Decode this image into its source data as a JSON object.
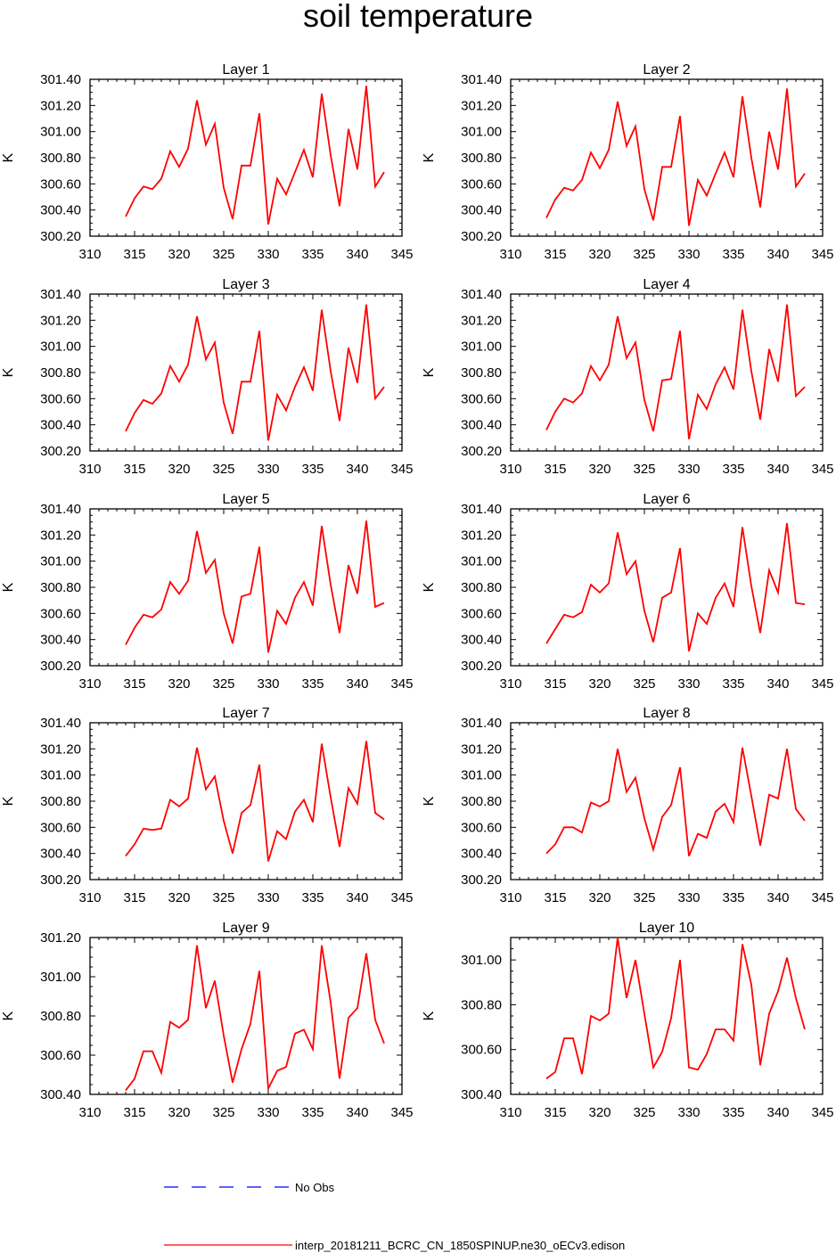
{
  "title": "soil temperature",
  "legend": [
    {
      "label": "No Obs",
      "color": "#0000ff",
      "style": "dashed"
    },
    {
      "label": "interp_20181211_BCRC_CN_1850SPINUP.ne30_oECv3.edison",
      "color": "#ff0000",
      "style": "solid"
    }
  ],
  "chart_data": [
    {
      "type": "line",
      "title": "Layer 1",
      "ylabel": "K",
      "xlim": [
        310,
        345
      ],
      "ylim": [
        300.2,
        301.4
      ],
      "xticks": [
        "310",
        "315",
        "320",
        "325",
        "330",
        "335",
        "340",
        "345"
      ],
      "yticks": [
        "300.20",
        "300.40",
        "300.60",
        "300.80",
        "301.00",
        "301.20",
        "301.40"
      ],
      "x": [
        314,
        315,
        316,
        317,
        318,
        319,
        320,
        321,
        322,
        323,
        324,
        325,
        326,
        327,
        328,
        329,
        330,
        331,
        332,
        333,
        334,
        335,
        336,
        337,
        338,
        339,
        340,
        341,
        342,
        343
      ],
      "series": [
        {
          "values": [
            300.35,
            300.49,
            300.58,
            300.56,
            300.64,
            300.85,
            300.73,
            300.87,
            301.24,
            300.9,
            301.06,
            300.57,
            300.33,
            300.74,
            300.74,
            301.14,
            300.29,
            300.64,
            300.52,
            300.69,
            300.86,
            300.65,
            301.29,
            300.82,
            300.43,
            301.02,
            300.71,
            301.35,
            300.58,
            300.69
          ]
        }
      ]
    },
    {
      "type": "line",
      "title": "Layer 2",
      "ylabel": "K",
      "xlim": [
        310,
        345
      ],
      "ylim": [
        300.2,
        301.4
      ],
      "xticks": [
        "310",
        "315",
        "320",
        "325",
        "330",
        "335",
        "340",
        "345"
      ],
      "yticks": [
        "300.20",
        "300.40",
        "300.60",
        "300.80",
        "301.00",
        "301.20",
        "301.40"
      ],
      "x": [
        314,
        315,
        316,
        317,
        318,
        319,
        320,
        321,
        322,
        323,
        324,
        325,
        326,
        327,
        328,
        329,
        330,
        331,
        332,
        333,
        334,
        335,
        336,
        337,
        338,
        339,
        340,
        341,
        342,
        343
      ],
      "series": [
        {
          "values": [
            300.34,
            300.48,
            300.57,
            300.55,
            300.63,
            300.84,
            300.72,
            300.86,
            301.23,
            300.89,
            301.04,
            300.56,
            300.32,
            300.73,
            300.73,
            301.12,
            300.28,
            300.63,
            300.51,
            300.68,
            300.84,
            300.65,
            301.27,
            300.8,
            300.42,
            301.0,
            300.71,
            301.33,
            300.58,
            300.68
          ]
        }
      ]
    },
    {
      "type": "line",
      "title": "Layer 3",
      "ylabel": "K",
      "xlim": [
        310,
        345
      ],
      "ylim": [
        300.2,
        301.4
      ],
      "xticks": [
        "310",
        "315",
        "320",
        "325",
        "330",
        "335",
        "340",
        "345"
      ],
      "yticks": [
        "300.20",
        "300.40",
        "300.60",
        "300.80",
        "301.00",
        "301.20",
        "301.40"
      ],
      "x": [
        314,
        315,
        316,
        317,
        318,
        319,
        320,
        321,
        322,
        323,
        324,
        325,
        326,
        327,
        328,
        329,
        330,
        331,
        332,
        333,
        334,
        335,
        336,
        337,
        338,
        339,
        340,
        341,
        342,
        343
      ],
      "series": [
        {
          "values": [
            300.35,
            300.49,
            300.59,
            300.56,
            300.64,
            300.85,
            300.73,
            300.86,
            301.23,
            300.9,
            301.03,
            300.57,
            300.33,
            300.73,
            300.73,
            301.12,
            300.28,
            300.63,
            300.51,
            300.69,
            300.84,
            300.66,
            301.28,
            300.81,
            300.43,
            300.99,
            300.72,
            301.32,
            300.6,
            300.69
          ]
        }
      ]
    },
    {
      "type": "line",
      "title": "Layer 4",
      "ylabel": "K",
      "xlim": [
        310,
        345
      ],
      "ylim": [
        300.2,
        301.4
      ],
      "xticks": [
        "310",
        "315",
        "320",
        "325",
        "330",
        "335",
        "340",
        "345"
      ],
      "yticks": [
        "300.20",
        "300.40",
        "300.60",
        "300.80",
        "301.00",
        "301.20",
        "301.40"
      ],
      "x": [
        314,
        315,
        316,
        317,
        318,
        319,
        320,
        321,
        322,
        323,
        324,
        325,
        326,
        327,
        328,
        329,
        330,
        331,
        332,
        333,
        334,
        335,
        336,
        337,
        338,
        339,
        340,
        341,
        342,
        343
      ],
      "series": [
        {
          "values": [
            300.36,
            300.5,
            300.6,
            300.57,
            300.64,
            300.85,
            300.74,
            300.86,
            301.23,
            300.91,
            301.03,
            300.59,
            300.35,
            300.74,
            300.75,
            301.12,
            300.29,
            300.63,
            300.52,
            300.71,
            300.84,
            300.67,
            301.28,
            300.81,
            300.44,
            300.98,
            300.73,
            301.32,
            300.62,
            300.69
          ]
        }
      ]
    },
    {
      "type": "line",
      "title": "Layer 5",
      "ylabel": "K",
      "xlim": [
        310,
        345
      ],
      "ylim": [
        300.2,
        301.4
      ],
      "xticks": [
        "310",
        "315",
        "320",
        "325",
        "330",
        "335",
        "340",
        "345"
      ],
      "yticks": [
        "300.20",
        "300.40",
        "300.60",
        "300.80",
        "301.00",
        "301.20",
        "301.40"
      ],
      "x": [
        314,
        315,
        316,
        317,
        318,
        319,
        320,
        321,
        322,
        323,
        324,
        325,
        326,
        327,
        328,
        329,
        330,
        331,
        332,
        333,
        334,
        335,
        336,
        337,
        338,
        339,
        340,
        341,
        342,
        343
      ],
      "series": [
        {
          "values": [
            300.36,
            300.49,
            300.59,
            300.57,
            300.63,
            300.84,
            300.75,
            300.85,
            301.23,
            300.91,
            301.01,
            300.6,
            300.37,
            300.73,
            300.75,
            301.11,
            300.3,
            300.62,
            300.52,
            300.72,
            300.84,
            300.66,
            301.27,
            300.82,
            300.45,
            300.97,
            300.75,
            301.31,
            300.65,
            300.68
          ]
        }
      ]
    },
    {
      "type": "line",
      "title": "Layer 6",
      "ylabel": "K",
      "xlim": [
        310,
        345
      ],
      "ylim": [
        300.2,
        301.4
      ],
      "xticks": [
        "310",
        "315",
        "320",
        "325",
        "330",
        "335",
        "340",
        "345"
      ],
      "yticks": [
        "300.20",
        "300.40",
        "300.60",
        "300.80",
        "301.00",
        "301.20",
        "301.40"
      ],
      "x": [
        314,
        315,
        316,
        317,
        318,
        319,
        320,
        321,
        322,
        323,
        324,
        325,
        326,
        327,
        328,
        329,
        330,
        331,
        332,
        333,
        334,
        335,
        336,
        337,
        338,
        339,
        340,
        341,
        342,
        343
      ],
      "series": [
        {
          "values": [
            300.37,
            300.48,
            300.59,
            300.57,
            300.61,
            300.82,
            300.76,
            300.83,
            301.22,
            300.9,
            301.0,
            300.62,
            300.38,
            300.72,
            300.76,
            301.1,
            300.31,
            300.6,
            300.52,
            300.72,
            300.83,
            300.65,
            301.26,
            300.81,
            300.45,
            300.93,
            300.76,
            301.29,
            300.68,
            300.67
          ]
        }
      ]
    },
    {
      "type": "line",
      "title": "Layer 7",
      "ylabel": "K",
      "xlim": [
        310,
        345
      ],
      "ylim": [
        300.2,
        301.4
      ],
      "xticks": [
        "310",
        "315",
        "320",
        "325",
        "330",
        "335",
        "340",
        "345"
      ],
      "yticks": [
        "300.20",
        "300.40",
        "300.60",
        "300.80",
        "301.00",
        "301.20",
        "301.40"
      ],
      "x": [
        314,
        315,
        316,
        317,
        318,
        319,
        320,
        321,
        322,
        323,
        324,
        325,
        326,
        327,
        328,
        329,
        330,
        331,
        332,
        333,
        334,
        335,
        336,
        337,
        338,
        339,
        340,
        341,
        342,
        343
      ],
      "series": [
        {
          "values": [
            300.38,
            300.47,
            300.59,
            300.58,
            300.59,
            300.81,
            300.76,
            300.82,
            301.21,
            300.89,
            300.99,
            300.65,
            300.4,
            300.71,
            300.77,
            301.08,
            300.34,
            300.57,
            300.51,
            300.72,
            300.81,
            300.64,
            301.24,
            300.83,
            300.45,
            300.9,
            300.78,
            301.26,
            300.71,
            300.66
          ]
        }
      ]
    },
    {
      "type": "line",
      "title": "Layer 8",
      "ylabel": "K",
      "xlim": [
        310,
        345
      ],
      "ylim": [
        300.2,
        301.4
      ],
      "xticks": [
        "310",
        "315",
        "320",
        "325",
        "330",
        "335",
        "340",
        "345"
      ],
      "yticks": [
        "300.20",
        "300.40",
        "300.60",
        "300.80",
        "301.00",
        "301.20",
        "301.40"
      ],
      "x": [
        314,
        315,
        316,
        317,
        318,
        319,
        320,
        321,
        322,
        323,
        324,
        325,
        326,
        327,
        328,
        329,
        330,
        331,
        332,
        333,
        334,
        335,
        336,
        337,
        338,
        339,
        340,
        341,
        342,
        343
      ],
      "series": [
        {
          "values": [
            300.4,
            300.47,
            300.6,
            300.6,
            300.56,
            300.79,
            300.76,
            300.8,
            301.2,
            300.87,
            300.98,
            300.67,
            300.43,
            300.68,
            300.77,
            301.06,
            300.38,
            300.55,
            300.52,
            300.72,
            300.78,
            300.64,
            301.21,
            300.84,
            300.46,
            300.85,
            300.82,
            301.2,
            300.74,
            300.65
          ]
        }
      ]
    },
    {
      "type": "line",
      "title": "Layer 9",
      "ylabel": "K",
      "xlim": [
        310,
        345
      ],
      "ylim": [
        300.4,
        301.2
      ],
      "xticks": [
        "310",
        "315",
        "320",
        "325",
        "330",
        "335",
        "340",
        "345"
      ],
      "yticks": [
        "300.40",
        "300.60",
        "300.80",
        "301.00",
        "301.20"
      ],
      "x": [
        314,
        315,
        316,
        317,
        318,
        319,
        320,
        321,
        322,
        323,
        324,
        325,
        326,
        327,
        328,
        329,
        330,
        331,
        332,
        333,
        334,
        335,
        336,
        337,
        338,
        339,
        340,
        341,
        342,
        343
      ],
      "series": [
        {
          "values": [
            300.42,
            300.48,
            300.62,
            300.62,
            300.51,
            300.77,
            300.74,
            300.78,
            301.16,
            300.84,
            300.98,
            300.7,
            300.46,
            300.63,
            300.76,
            301.03,
            300.43,
            300.52,
            300.54,
            300.71,
            300.73,
            300.63,
            301.16,
            300.87,
            300.48,
            300.79,
            300.84,
            301.12,
            300.78,
            300.66
          ]
        }
      ]
    },
    {
      "type": "line",
      "title": "Layer 10",
      "ylabel": "K",
      "xlim": [
        310,
        345
      ],
      "ylim": [
        300.4,
        301.1
      ],
      "xticks": [
        "310",
        "315",
        "320",
        "325",
        "330",
        "335",
        "340",
        "345"
      ],
      "yticks": [
        "300.40",
        "300.60",
        "300.80",
        "301.00"
      ],
      "x": [
        314,
        315,
        316,
        317,
        318,
        319,
        320,
        321,
        322,
        323,
        324,
        325,
        326,
        327,
        328,
        329,
        330,
        331,
        332,
        333,
        334,
        335,
        336,
        337,
        338,
        339,
        340,
        341,
        342,
        343
      ],
      "series": [
        {
          "values": [
            300.47,
            300.5,
            300.65,
            300.65,
            300.49,
            300.75,
            300.73,
            300.76,
            301.1,
            300.83,
            301.0,
            300.76,
            300.52,
            300.59,
            300.74,
            301.0,
            300.52,
            300.51,
            300.58,
            300.69,
            300.69,
            300.64,
            301.07,
            300.89,
            300.53,
            300.76,
            300.86,
            301.01,
            300.83,
            300.69
          ]
        }
      ]
    }
  ]
}
